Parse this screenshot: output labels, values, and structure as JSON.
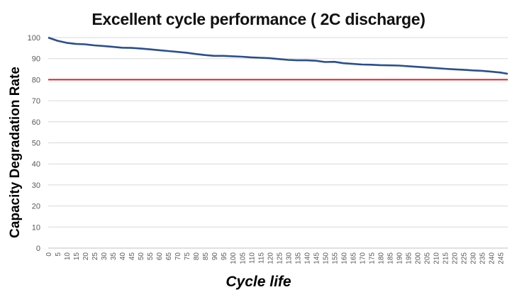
{
  "chart_data": {
    "type": "line",
    "title": "Excellent cycle performance ( 2C discharge)",
    "xlabel": "Cycle life",
    "ylabel": "Capacity Degradation Rate",
    "xlim": [
      0,
      249
    ],
    "ylim": [
      0,
      100
    ],
    "yticks": [
      0,
      10,
      20,
      30,
      40,
      50,
      60,
      70,
      80,
      90,
      100
    ],
    "xticks": [
      "0",
      "5",
      "10",
      "15",
      "20",
      "25",
      "30",
      "35",
      "40",
      "45",
      "50",
      "55",
      "60",
      "65",
      "70",
      "75",
      "80",
      "85",
      "90",
      "95",
      "100",
      "105",
      "110",
      "115",
      "120",
      "125",
      "130",
      "135",
      "140",
      "145",
      "150",
      "155",
      "160",
      "165",
      "170",
      "175",
      "180",
      "185",
      "190",
      "195",
      "200",
      "205",
      "210",
      "215",
      "220",
      "225",
      "230",
      "235",
      "240",
      "245"
    ],
    "grid": "horizontal",
    "series": [
      {
        "color": "#2a4f8f",
        "x": [
          0,
          5,
          10,
          15,
          20,
          25,
          30,
          35,
          40,
          45,
          50,
          55,
          60,
          65,
          70,
          75,
          80,
          85,
          90,
          95,
          100,
          105,
          110,
          115,
          120,
          125,
          130,
          135,
          140,
          145,
          150,
          155,
          160,
          165,
          170,
          175,
          180,
          185,
          190,
          195,
          200,
          205,
          210,
          215,
          220,
          225,
          230,
          235,
          240,
          245,
          249
        ],
        "y": [
          100,
          98.5,
          97.5,
          97,
          96.8,
          96.3,
          96,
          95.6,
          95.2,
          95.1,
          94.8,
          94.4,
          94,
          93.6,
          93.2,
          92.8,
          92.2,
          91.7,
          91.3,
          91.3,
          91.1,
          90.9,
          90.6,
          90.4,
          90.2,
          89.8,
          89.4,
          89.2,
          89.2,
          89,
          88.4,
          88.5,
          87.8,
          87.5,
          87.2,
          87.1,
          86.9,
          86.8,
          86.7,
          86.4,
          86.1,
          85.8,
          85.5,
          85.2,
          84.9,
          84.7,
          84.4,
          84.2,
          83.8,
          83.4,
          82.8
        ]
      },
      {
        "color": "#e02020",
        "x": [
          0,
          249
        ],
        "y": [
          80,
          80
        ]
      }
    ]
  }
}
